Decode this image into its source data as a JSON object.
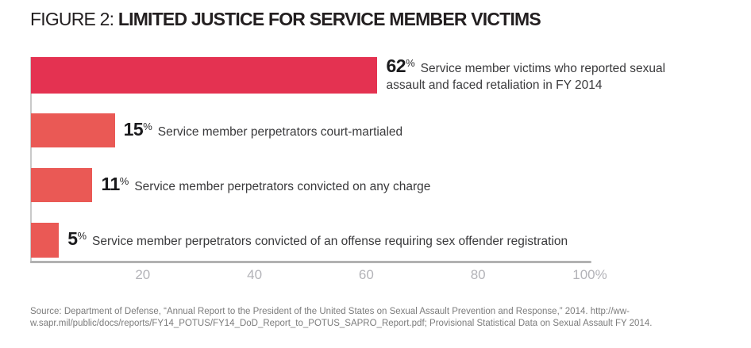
{
  "header": {
    "figure_label": "FIGURE 2:",
    "title": "LIMITED JUSTICE FOR SERVICE MEMBER VICTIMS"
  },
  "chart_data": {
    "type": "bar",
    "orientation": "horizontal",
    "title": "FIGURE 2: LIMITED JUSTICE FOR SERVICE MEMBER VICTIMS",
    "categories": [
      "Service member victims who reported sexual assault and faced retaliation in FY 2014",
      "Service member perpetrators court-martialed",
      "Service member perpetrators convicted on any charge",
      "Service member perpetrators convicted of an offense requiring sex offender registration"
    ],
    "values": [
      62,
      15,
      11,
      5
    ],
    "unit": "%",
    "xlim": [
      0,
      100
    ],
    "xticks": [
      20,
      40,
      60,
      80,
      100
    ],
    "xtick_labels": [
      "20",
      "40",
      "60",
      "80",
      "100%"
    ],
    "grid": false,
    "legend": false,
    "bar_colors": [
      "#e43251",
      "#ea5955",
      "#ea5955",
      "#ea5955"
    ],
    "axis_color": "#b2b2b2"
  },
  "source": {
    "line1": "Source: Department of Defense, “Annual Report to the President of the United States on Sexual Assault Prevention and Response,” 2014. http://ww-",
    "line2": "w.sapr.mil/public/docs/reports/FY14_POTUS/FY14_DoD_Report_to_POTUS_SAPRO_Report.pdf; Provisional Statistical Data on Sexual Assault FY 2014."
  }
}
